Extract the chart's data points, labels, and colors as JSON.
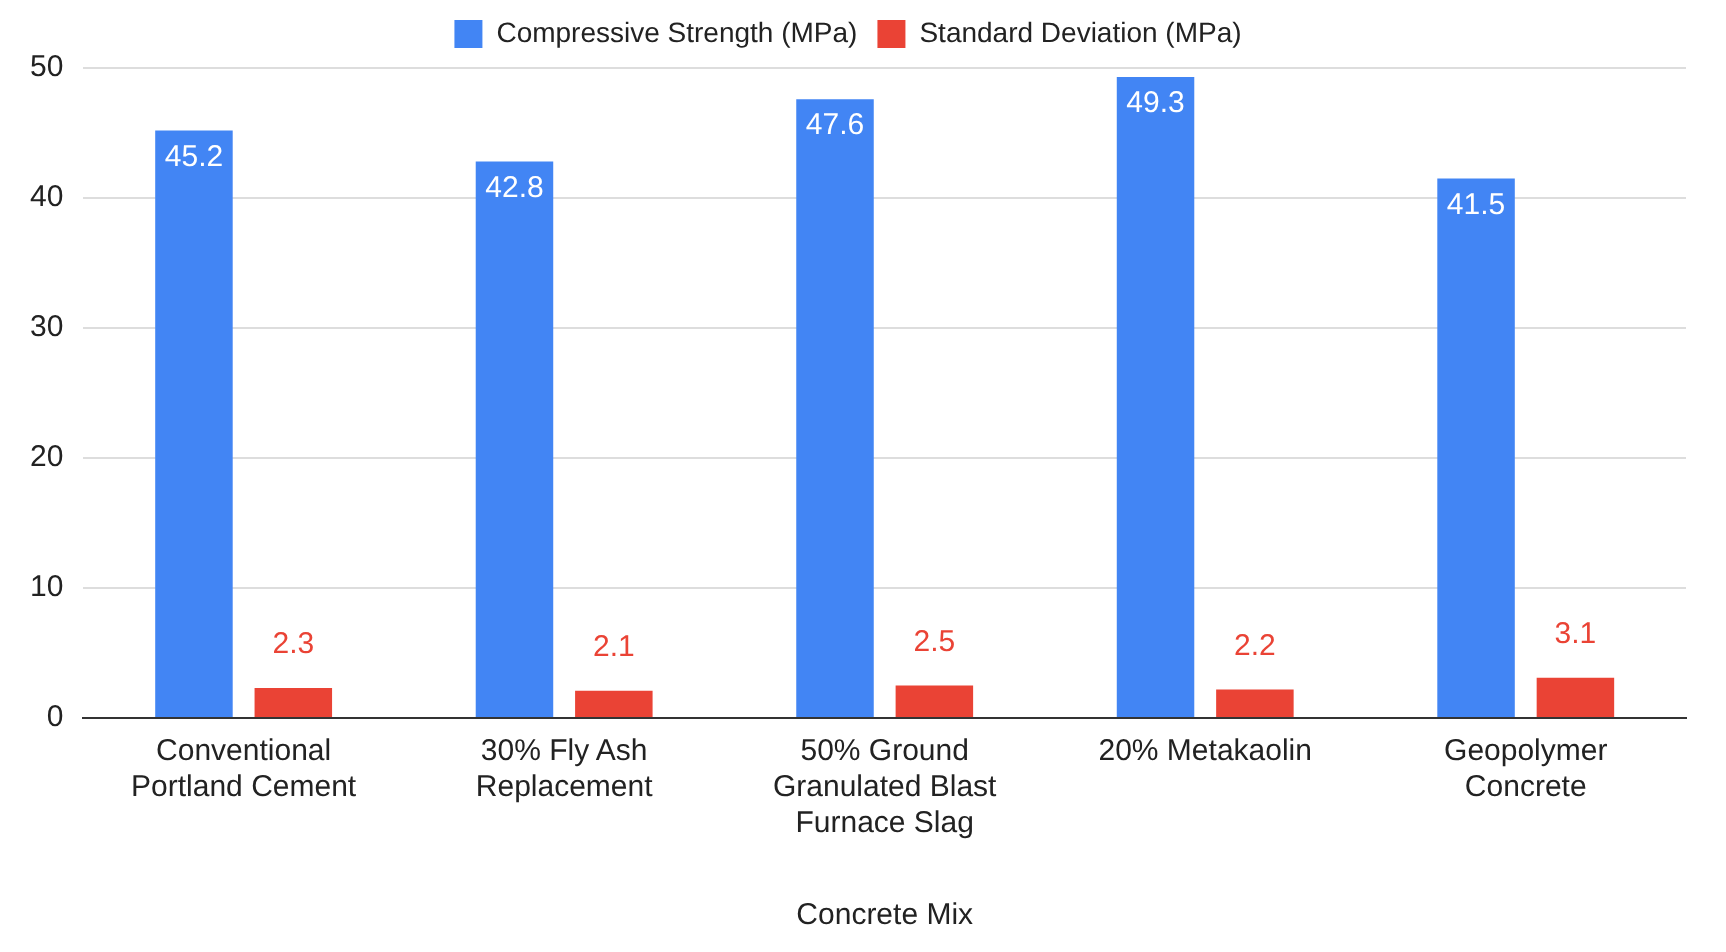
{
  "chart_data": {
    "type": "bar",
    "xlabel": "Concrete Mix",
    "categories": [
      "Conventional Portland Cement",
      "30% Fly Ash Replacement",
      "50% Ground Granulated Blast Furnace Slag",
      "20% Metakaolin",
      "Geopolymer Concrete"
    ],
    "series": [
      {
        "name": "Compressive Strength (MPa)",
        "color": "#4285f4",
        "values": [
          45.2,
          42.8,
          47.6,
          49.3,
          41.5
        ]
      },
      {
        "name": "Standard Deviation (MPa)",
        "color": "#ea4335",
        "values": [
          2.3,
          2.1,
          2.5,
          2.2,
          3.1
        ]
      }
    ],
    "ylim": [
      0,
      50
    ],
    "yticks": [
      0,
      10,
      20,
      30,
      40,
      50
    ],
    "grid": "y",
    "legend": "top",
    "data_labels": true
  }
}
